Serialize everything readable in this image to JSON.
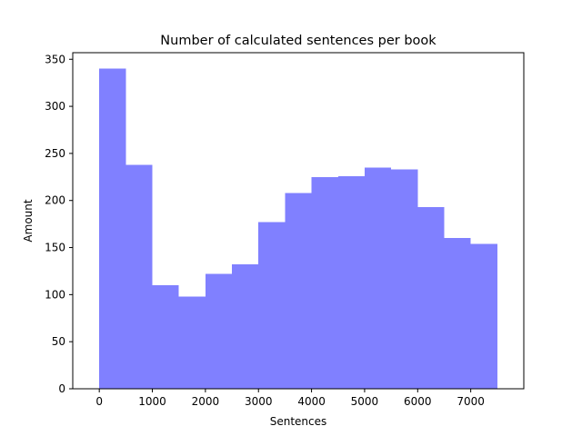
{
  "chart_data": {
    "type": "bar",
    "subtype": "histogram",
    "title": "Number of calculated sentences per book",
    "xlabel": "Sentences",
    "ylabel": "Amount",
    "xlim": [
      -500,
      8000
    ],
    "ylim": [
      0,
      357
    ],
    "xticks": [
      0,
      1000,
      2000,
      3000,
      4000,
      5000,
      6000,
      7000
    ],
    "yticks": [
      0,
      50,
      100,
      150,
      200,
      250,
      300,
      350
    ],
    "bin_edges": [
      0,
      500,
      1000,
      1500,
      2000,
      2500,
      3000,
      3500,
      4000,
      4500,
      5000,
      5500,
      6000,
      6500,
      7000,
      7500
    ],
    "values": [
      340,
      238,
      110,
      98,
      122,
      132,
      177,
      208,
      225,
      226,
      235,
      233,
      193,
      160,
      154
    ],
    "bar_color": "#8080ff",
    "grid": false,
    "legend": "none"
  }
}
